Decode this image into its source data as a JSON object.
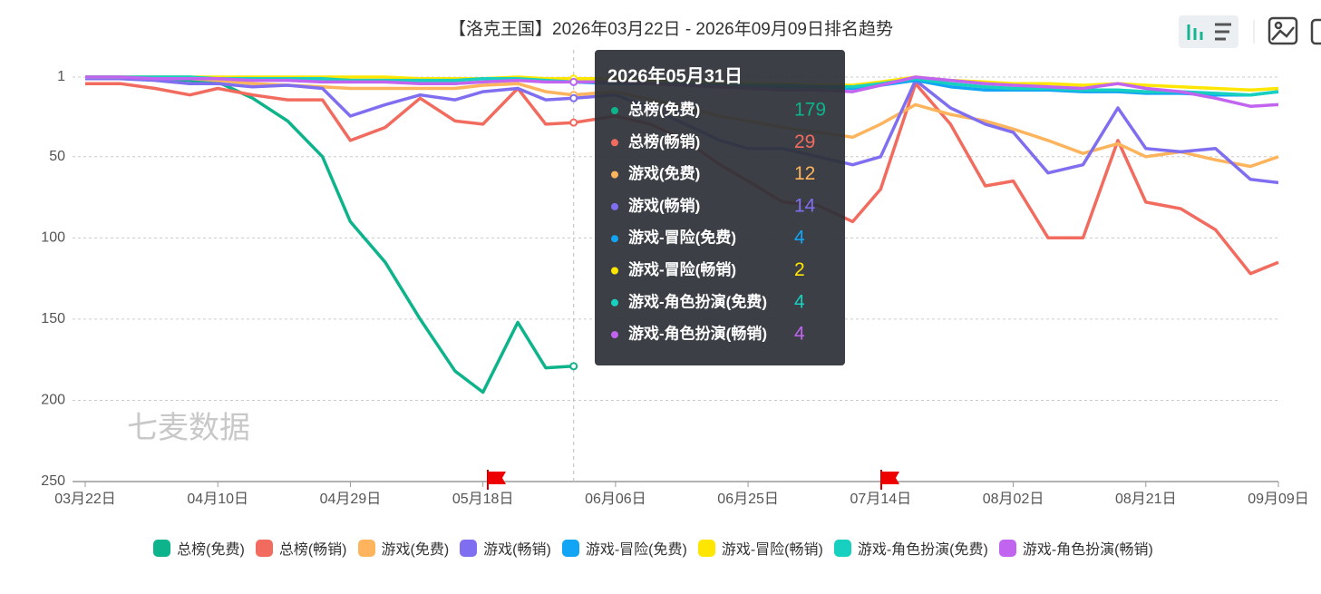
{
  "chart_data": {
    "type": "line",
    "title": "【洛克王国】2026年03月22日 - 2026年09月09日排名趋势",
    "watermark": "七麦数据",
    "x": [
      "03月22日",
      "03月27日",
      "04月01日",
      "04月06日",
      "04月10日",
      "04月15日",
      "04月20日",
      "04月25日",
      "04月29日",
      "05月04日",
      "05月09日",
      "05月14日",
      "05月18日",
      "05月23日",
      "05月27日",
      "05月31日",
      "06月06日",
      "06月11日",
      "06月16日",
      "06月21日",
      "06月25日",
      "06月30日",
      "07月05日",
      "07月10日",
      "07月14日",
      "07月19日",
      "07月24日",
      "07月29日",
      "08月02日",
      "08月07日",
      "08月12日",
      "08月17日",
      "08月21日",
      "08月26日",
      "08月31日",
      "09月05日",
      "09月09日"
    ],
    "xlim": [
      "03月22日",
      "09月09日"
    ],
    "xticks": [
      "03月22日",
      "04月10日",
      "04月29日",
      "05月18日",
      "06月06日",
      "06月25日",
      "07月14日",
      "08月02日",
      "08月21日",
      "09月09日"
    ],
    "ylim": [
      1,
      250
    ],
    "yticks": [
      1,
      50,
      100,
      150,
      200,
      250
    ],
    "y_inverted": true,
    "grid": true,
    "legend": "bottom",
    "series": [
      {
        "name": "总榜(免费)",
        "color": "#0db38a",
        "values": [
          1,
          1,
          2,
          3,
          4,
          14,
          28,
          50,
          90,
          115,
          150,
          182,
          195,
          152,
          180,
          179,
          null,
          null,
          null,
          null,
          null,
          null,
          null,
          null,
          null,
          null,
          null,
          null,
          null,
          null,
          null,
          null,
          null,
          null,
          null,
          null,
          null
        ]
      },
      {
        "name": "总榜(畅销)",
        "color": "#f26b5f",
        "values": [
          5,
          5,
          8,
          12,
          8,
          12,
          15,
          15,
          40,
          32,
          14,
          28,
          30,
          8,
          30,
          29,
          25,
          30,
          40,
          55,
          65,
          78,
          80,
          90,
          70,
          5,
          30,
          68,
          65,
          100,
          100,
          40,
          78,
          82,
          95,
          122,
          115
        ]
      },
      {
        "name": "游戏(免费)",
        "color": "#fdb45c",
        "values": [
          1,
          1,
          2,
          2,
          3,
          5,
          6,
          7,
          8,
          8,
          8,
          8,
          6,
          5,
          10,
          12,
          10,
          15,
          20,
          25,
          28,
          32,
          35,
          38,
          30,
          18,
          24,
          28,
          33,
          40,
          48,
          42,
          50,
          47,
          52,
          56,
          50
        ]
      },
      {
        "name": "游戏(畅销)",
        "color": "#7f6ff0",
        "values": [
          2,
          2,
          3,
          5,
          5,
          7,
          6,
          8,
          25,
          18,
          12,
          15,
          10,
          8,
          15,
          14,
          12,
          20,
          30,
          40,
          45,
          45,
          50,
          55,
          50,
          3,
          20,
          30,
          35,
          60,
          55,
          20,
          45,
          47,
          45,
          64,
          66
        ]
      },
      {
        "name": "游戏-冒险(免费)",
        "color": "#12a5f5",
        "values": [
          1,
          1,
          1,
          1,
          2,
          2,
          2,
          2,
          3,
          3,
          3,
          3,
          2,
          2,
          3,
          4,
          5,
          5,
          6,
          6,
          7,
          7,
          7,
          8,
          6,
          3,
          7,
          9,
          9,
          9,
          10,
          10,
          11,
          11,
          12,
          12,
          10
        ]
      },
      {
        "name": "游戏-冒险(畅销)",
        "color": "#ffe600",
        "values": [
          1,
          1,
          1,
          1,
          1,
          1,
          1,
          1,
          1,
          1,
          2,
          2,
          2,
          1,
          2,
          2,
          2,
          3,
          4,
          4,
          5,
          5,
          6,
          6,
          4,
          1,
          3,
          4,
          5,
          5,
          6,
          5,
          6,
          7,
          8,
          9,
          8
        ]
      },
      {
        "name": "游戏-角色扮演(免费)",
        "color": "#17d0bf",
        "values": [
          1,
          1,
          1,
          1,
          2,
          2,
          2,
          2,
          3,
          3,
          3,
          3,
          2,
          2,
          3,
          4,
          4,
          5,
          5,
          6,
          6,
          6,
          7,
          7,
          5,
          2,
          5,
          7,
          8,
          8,
          9,
          9,
          10,
          10,
          11,
          12,
          10
        ]
      },
      {
        "name": "游戏-角色扮演(畅销)",
        "color": "#c165f0",
        "values": [
          1,
          1,
          2,
          2,
          2,
          3,
          3,
          4,
          4,
          4,
          5,
          5,
          4,
          3,
          4,
          4,
          4,
          5,
          6,
          7,
          8,
          9,
          9,
          10,
          6,
          1,
          3,
          5,
          6,
          7,
          8,
          5,
          8,
          10,
          14,
          19,
          18
        ]
      }
    ],
    "tooltip_title": "2026年05月31日"
  }
}
